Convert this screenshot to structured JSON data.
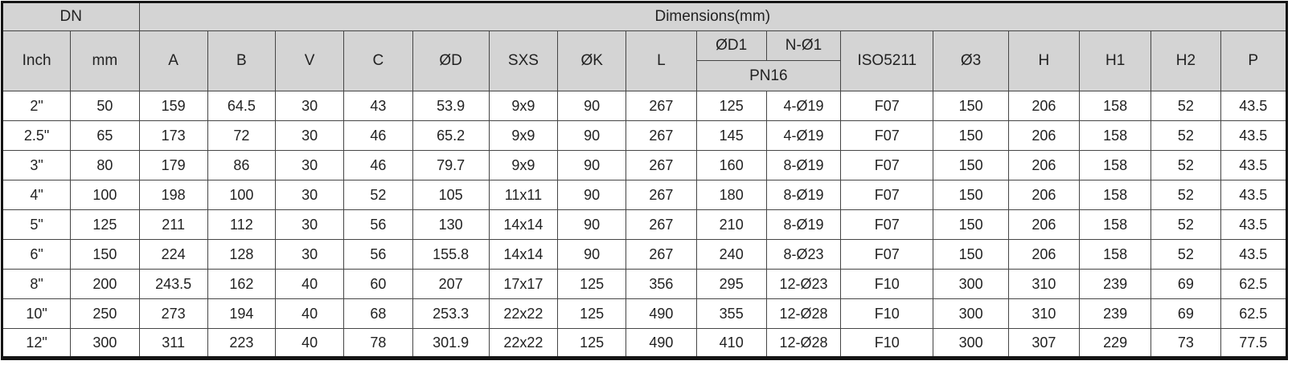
{
  "colors": {
    "header_bg": "#d4d4d4",
    "row_bg": "#ffffff",
    "grid_border": "#454545",
    "outer_border": "#141414",
    "text": "#222222"
  },
  "table": {
    "group_headers": {
      "dn": "DN",
      "dimensions": "Dimensions(mm)"
    },
    "pn_subheader": "PN16",
    "columns": [
      "Inch",
      "mm",
      "A",
      "B",
      "V",
      "C",
      "ØD",
      "SXS",
      "ØK",
      "L",
      "ØD1",
      "N-Ø1",
      "ISO5211",
      "Ø3",
      "H",
      "H1",
      "H2",
      "P"
    ],
    "rows": [
      [
        "2\"",
        "50",
        "159",
        "64.5",
        "30",
        "43",
        "53.9",
        "9x9",
        "90",
        "267",
        "125",
        "4-Ø19",
        "F07",
        "150",
        "206",
        "158",
        "52",
        "43.5"
      ],
      [
        "2.5\"",
        "65",
        "173",
        "72",
        "30",
        "46",
        "65.2",
        "9x9",
        "90",
        "267",
        "145",
        "4-Ø19",
        "F07",
        "150",
        "206",
        "158",
        "52",
        "43.5"
      ],
      [
        "3\"",
        "80",
        "179",
        "86",
        "30",
        "46",
        "79.7",
        "9x9",
        "90",
        "267",
        "160",
        "8-Ø19",
        "F07",
        "150",
        "206",
        "158",
        "52",
        "43.5"
      ],
      [
        "4\"",
        "100",
        "198",
        "100",
        "30",
        "52",
        "105",
        "11x11",
        "90",
        "267",
        "180",
        "8-Ø19",
        "F07",
        "150",
        "206",
        "158",
        "52",
        "43.5"
      ],
      [
        "5\"",
        "125",
        "211",
        "112",
        "30",
        "56",
        "130",
        "14x14",
        "90",
        "267",
        "210",
        "8-Ø19",
        "F07",
        "150",
        "206",
        "158",
        "52",
        "43.5"
      ],
      [
        "6\"",
        "150",
        "224",
        "128",
        "30",
        "56",
        "155.8",
        "14x14",
        "90",
        "267",
        "240",
        "8-Ø23",
        "F07",
        "150",
        "206",
        "158",
        "52",
        "43.5"
      ],
      [
        "8\"",
        "200",
        "243.5",
        "162",
        "40",
        "60",
        "207",
        "17x17",
        "125",
        "356",
        "295",
        "12-Ø23",
        "F10",
        "300",
        "310",
        "239",
        "69",
        "62.5"
      ],
      [
        "10\"",
        "250",
        "273",
        "194",
        "40",
        "68",
        "253.3",
        "22x22",
        "125",
        "490",
        "355",
        "12-Ø28",
        "F10",
        "300",
        "310",
        "239",
        "69",
        "62.5"
      ],
      [
        "12\"",
        "300",
        "311",
        "223",
        "40",
        "78",
        "301.9",
        "22x22",
        "125",
        "490",
        "410",
        "12-Ø28",
        "F10",
        "300",
        "307",
        "229",
        "73",
        "77.5"
      ]
    ]
  }
}
